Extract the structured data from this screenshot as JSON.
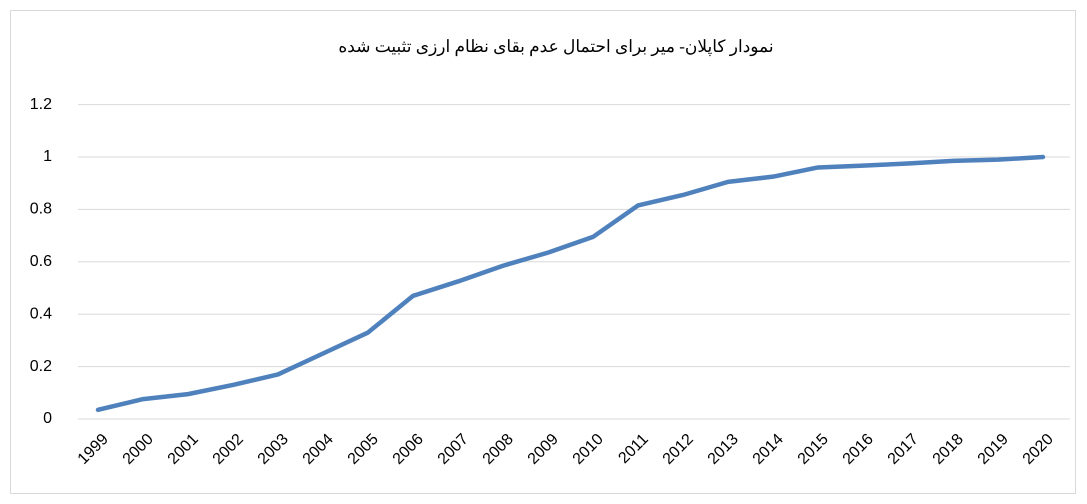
{
  "chart_data": {
    "type": "line",
    "title": "نمودار کاپلان- میر برای احتمال عدم بقای نظام ارزی تثبیت شده",
    "categories": [
      "1999",
      "2000",
      "2001",
      "2002",
      "2003",
      "2004",
      "2005",
      "2006",
      "2007",
      "2008",
      "2009",
      "2010",
      "2011",
      "2012",
      "2013",
      "2014",
      "2015",
      "2016",
      "2017",
      "2018",
      "2019",
      "2020"
    ],
    "values": [
      0.035,
      0.076,
      0.095,
      0.13,
      0.17,
      0.25,
      0.33,
      0.47,
      0.525,
      0.585,
      0.635,
      0.695,
      0.815,
      0.855,
      0.905,
      0.925,
      0.96,
      0.967,
      0.975,
      0.985,
      0.99,
      1.0
    ],
    "color": "#4f81bd",
    "ylim": [
      0,
      1.2
    ],
    "yticks": [
      0,
      0.2,
      0.4,
      0.6,
      0.8,
      1,
      1.2
    ],
    "grid": true
  }
}
